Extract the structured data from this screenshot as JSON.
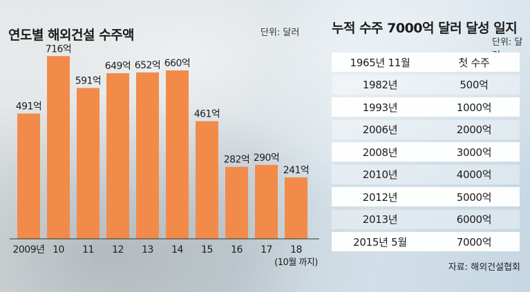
{
  "chart_data": {
    "type": "bar",
    "title": "연도별 해외건설 수주액",
    "unit": "단위: 달러",
    "categories": [
      "2009년",
      "10",
      "11",
      "12",
      "13",
      "14",
      "15",
      "16",
      "17",
      "18"
    ],
    "values": [
      491,
      716,
      591,
      649,
      652,
      660,
      461,
      282,
      290,
      241
    ],
    "value_labels": [
      "491억",
      "716억",
      "591억",
      "649억",
      "652억",
      "660억",
      "461억",
      "282억",
      "290억",
      "241억"
    ],
    "last_category_note": "(10월 까지)",
    "bar_color": "#f28b4a",
    "ylim": [
      0,
      760
    ]
  },
  "milestones": {
    "title": "누적 수주 7000억 달러 달성 일지",
    "unit": "단위: 달러",
    "rows": [
      {
        "year": "1965년 11월",
        "amount": "첫 수주"
      },
      {
        "year": "1982년",
        "amount": "500억"
      },
      {
        "year": "1993년",
        "amount": "1000억"
      },
      {
        "year": "2006년",
        "amount": "2000억"
      },
      {
        "year": "2008년",
        "amount": "3000억"
      },
      {
        "year": "2010년",
        "amount": "4000억"
      },
      {
        "year": "2012년",
        "amount": "5000억"
      },
      {
        "year": "2013년",
        "amount": "6000억"
      },
      {
        "year": "2015년 5월",
        "amount": "7000억"
      }
    ]
  },
  "source": "자료: 해외건설협회"
}
